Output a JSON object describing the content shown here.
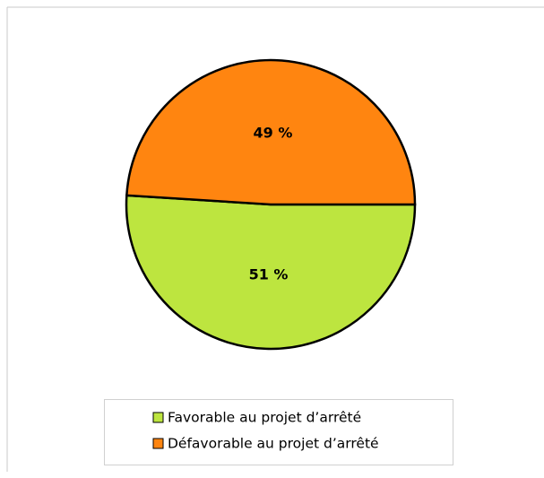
{
  "chart_data": {
    "type": "pie",
    "categories": [
      "Favorable au projet d’arrêté",
      "Défavorable au projet d’arrêté"
    ],
    "values": [
      51,
      49
    ],
    "value_labels": [
      "51 %",
      "49 %"
    ],
    "colors": [
      "#bde53f",
      "#ff8510"
    ]
  }
}
